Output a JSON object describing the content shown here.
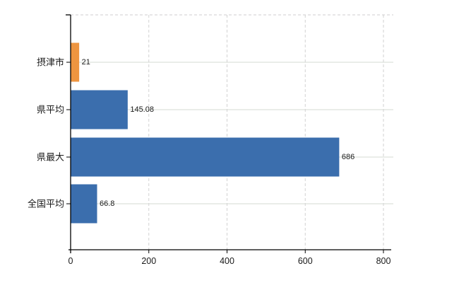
{
  "chart_data": {
    "type": "bar",
    "orientation": "horizontal",
    "title": "",
    "categories": [
      "摂津市",
      "県平均",
      "県最大",
      "全国平均"
    ],
    "values": [
      21,
      145.08,
      686,
      66.8
    ],
    "value_labels": [
      "21",
      "145.08",
      "686",
      "66.8"
    ],
    "bar_colors": [
      "#EE9540",
      "#3B6EAD",
      "#3B6EAD",
      "#3B6EAD"
    ],
    "x_ticks": [
      0,
      200,
      400,
      600,
      800
    ],
    "x_tick_labels": [
      "0",
      "200",
      "400",
      "600",
      "800"
    ],
    "xlim": [
      0,
      800
    ],
    "grid": true,
    "legend": false,
    "gridline_style": "vertical-dashed-horizontal-solid"
  },
  "colors": {
    "highlight_bar": "#EE9540",
    "default_bar": "#3B6EAD",
    "gridline_h": "#D5DBD3",
    "gridline_v": "#D2D2D2",
    "plot_border": "#D0CED0",
    "axis": "#000000",
    "text": "#1A1A1A",
    "background": "#FFFFFF"
  }
}
